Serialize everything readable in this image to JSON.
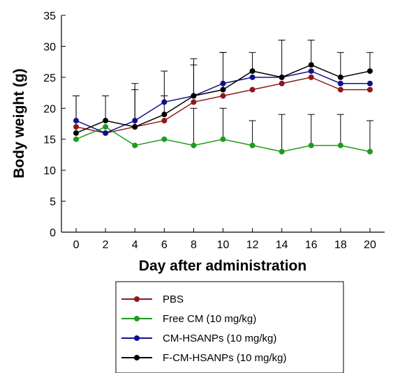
{
  "chart_data": {
    "type": "line",
    "xlabel": "Day after administration",
    "ylabel": "Body weight (g)",
    "x": [
      0,
      2,
      4,
      6,
      8,
      10,
      12,
      14,
      16,
      18,
      20
    ],
    "xlim": [
      -1,
      21
    ],
    "ylim": [
      0,
      35
    ],
    "yticks": [
      0,
      5,
      10,
      15,
      20,
      25,
      30,
      35
    ],
    "grid": false,
    "legend_position": "bottom",
    "series": [
      {
        "name": "PBS",
        "color": "#8B1A1A",
        "values": [
          17,
          16,
          17,
          18,
          21,
          22,
          23,
          24,
          25,
          23,
          23
        ],
        "error": [
          null,
          null,
          null,
          null,
          null,
          null,
          null,
          null,
          null,
          null,
          null
        ]
      },
      {
        "name": "Free CM (10 mg/kg)",
        "color": "#1E9A1E",
        "values": [
          15,
          17,
          14,
          15,
          14,
          15,
          14,
          13,
          14,
          14,
          13
        ],
        "error": [
          null,
          null,
          null,
          null,
          6,
          5,
          4,
          6,
          5,
          5,
          5
        ]
      },
      {
        "name": "CM-HSANPs (10 mg/kg)",
        "color": "#10108C",
        "values": [
          18,
          16,
          18,
          21,
          22,
          24,
          25,
          25,
          26,
          24,
          24
        ],
        "error": [
          4,
          null,
          6,
          5,
          6,
          5,
          null,
          null,
          null,
          null,
          null
        ]
      },
      {
        "name": "F-CM-HSANPs (10 mg/kg)",
        "color": "#000000",
        "values": [
          16,
          18,
          17,
          19,
          22,
          23,
          26,
          25,
          27,
          25,
          26
        ],
        "error": [
          6,
          4,
          6,
          3,
          5,
          6,
          3,
          6,
          4,
          4,
          3
        ]
      }
    ]
  }
}
